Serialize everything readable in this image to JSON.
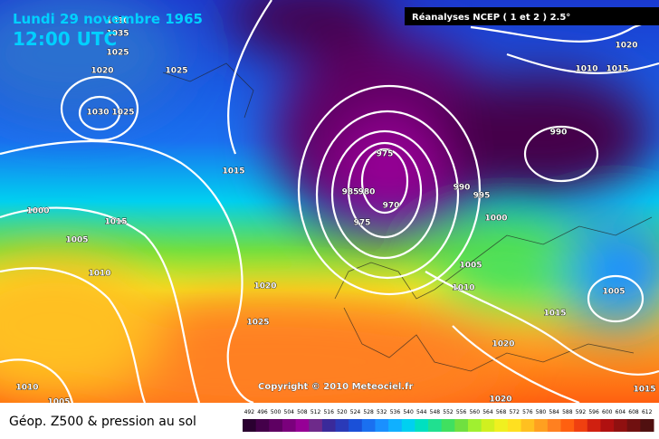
{
  "header": {
    "date": "Lundi 29 novembre 1965",
    "time": "12:00 UTC",
    "source": "Réanalyses NCEP ( 1 et 2 ) 2.5°",
    "copyright": "Copyright © 2010 Meteociel.fr"
  },
  "legend": {
    "title": "Géop. Z500 & pression au sol",
    "levels": [
      492,
      496,
      500,
      504,
      508,
      512,
      516,
      520,
      524,
      528,
      532,
      536,
      540,
      544,
      548,
      552,
      556,
      560,
      564,
      568,
      572,
      576,
      580,
      584,
      588,
      592,
      596,
      600,
      604,
      608,
      612
    ],
    "colors": [
      "#2a0030",
      "#44004a",
      "#5e0062",
      "#7a007c",
      "#960096",
      "#6e2a8a",
      "#3a2a9a",
      "#2a3ab8",
      "#1a50d8",
      "#1a70f0",
      "#1a90ff",
      "#10b0ff",
      "#00d0f0",
      "#00e0c0",
      "#20e090",
      "#40e060",
      "#70e040",
      "#a0f030",
      "#d0f020",
      "#f0f020",
      "#ffe020",
      "#ffc020",
      "#ffa020",
      "#ff8020",
      "#ff6010",
      "#f04010",
      "#d02010",
      "#b01010",
      "#901010",
      "#701010",
      "#501010"
    ]
  },
  "isobar_labels": [
    "1035",
    "1030",
    "1025",
    "1020",
    "1025",
    "1030",
    "1025",
    "1015",
    "1000",
    "1015",
    "1005",
    "1010",
    "1020",
    "1025",
    "975",
    "985",
    "980",
    "975",
    "970",
    "990",
    "995",
    "1000",
    "1005",
    "1010",
    "1015",
    "1020",
    "990",
    "1010",
    "1015",
    "1020",
    "1005",
    "1010",
    "1005",
    "1020",
    "1015"
  ]
}
